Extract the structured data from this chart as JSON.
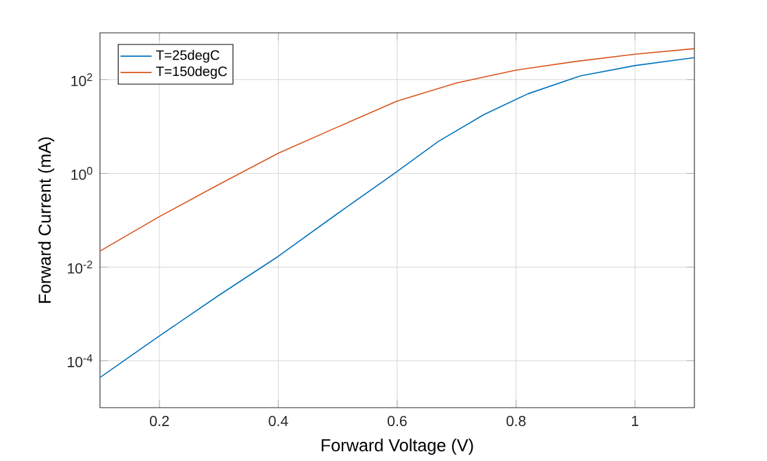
{
  "chart_data": {
    "type": "line",
    "xlabel": "Forward Voltage (V)",
    "ylabel": "Forward Current (mA)",
    "log": "y",
    "grid": true,
    "legend": "top left",
    "line_style": "solid",
    "xlim": [
      0.1,
      1.1
    ],
    "ylim": [
      1e-05,
      1000
    ],
    "xticks": [
      0.2,
      0.4,
      0.6,
      0.8,
      1
    ],
    "yticks": [
      {
        "value": 0.0001,
        "label": "10$^{-4}$"
      },
      {
        "value": 0.01,
        "label": "10$^{-2}$"
      },
      {
        "value": 1,
        "label": "10$^{0}$"
      },
      {
        "value": 100,
        "label": "10$^{2}$"
      }
    ],
    "series": [
      {
        "name": "T=25degC",
        "color": "#0072bd",
        "x": [
          0.1,
          0.2,
          0.3,
          0.4,
          0.5,
          0.6,
          0.669,
          0.746,
          0.82,
          0.908,
          1.0,
          1.1
        ],
        "values": [
          4.4e-05,
          0.00034,
          0.0025,
          0.017,
          0.14,
          1.1,
          4.8,
          18,
          50,
          120,
          200,
          295
        ]
      },
      {
        "name": "T=150degC",
        "color": "#d95319",
        "x": [
          0.1,
          0.2,
          0.3,
          0.4,
          0.5,
          0.6,
          0.7,
          0.8,
          0.9,
          1.0,
          1.1
        ],
        "values": [
          0.022,
          0.12,
          0.58,
          2.7,
          9.8,
          35,
          85,
          160,
          245,
          350,
          460
        ]
      }
    ]
  }
}
